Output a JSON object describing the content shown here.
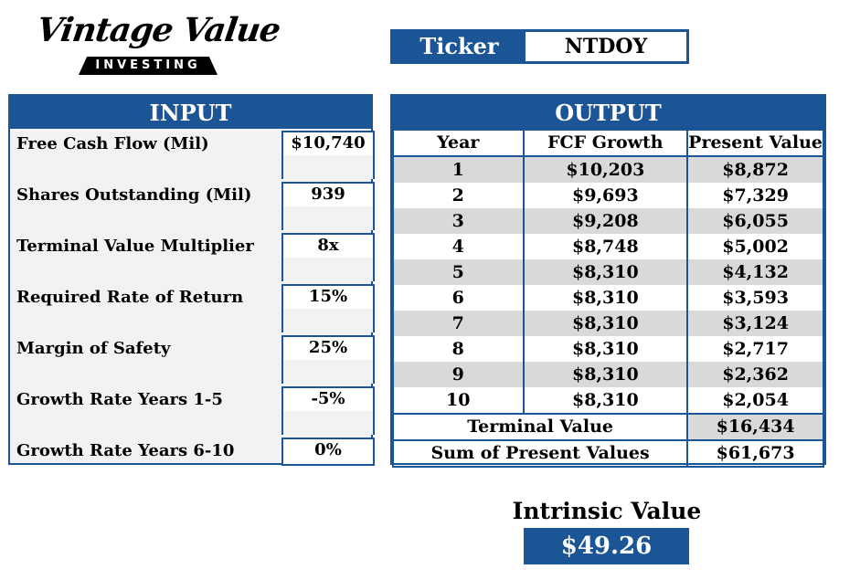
{
  "logo": {
    "script_text": "Vintage Value",
    "sub_text": "INVESTING"
  },
  "ticker": {
    "label": "Ticker",
    "value": "NTDOY"
  },
  "input": {
    "title": "INPUT",
    "fields": [
      {
        "label": "Free Cash Flow (Mil)",
        "value": "$10,740"
      },
      {
        "label": "Shares Outstanding (Mil)",
        "value": "939"
      },
      {
        "label": "Terminal Value Multiplier",
        "value": "8x"
      },
      {
        "label": "Required Rate of Return",
        "value": "15%"
      },
      {
        "label": "Margin of Safety",
        "value": "25%"
      },
      {
        "label": "Growth Rate Years 1-5",
        "value": "-5%"
      },
      {
        "label": "Growth Rate Years 6-10",
        "value": "0%"
      }
    ]
  },
  "output": {
    "title": "OUTPUT",
    "columns": [
      "Year",
      "FCF Growth",
      "Present Value"
    ],
    "rows": [
      {
        "year": "1",
        "fcf": "$10,203",
        "pv": "$8,872"
      },
      {
        "year": "2",
        "fcf": "$9,693",
        "pv": "$7,329"
      },
      {
        "year": "3",
        "fcf": "$9,208",
        "pv": "$6,055"
      },
      {
        "year": "4",
        "fcf": "$8,748",
        "pv": "$5,002"
      },
      {
        "year": "5",
        "fcf": "$8,310",
        "pv": "$4,132"
      },
      {
        "year": "6",
        "fcf": "$8,310",
        "pv": "$3,593"
      },
      {
        "year": "7",
        "fcf": "$8,310",
        "pv": "$3,124"
      },
      {
        "year": "8",
        "fcf": "$8,310",
        "pv": "$2,717"
      },
      {
        "year": "9",
        "fcf": "$8,310",
        "pv": "$2,362"
      },
      {
        "year": "10",
        "fcf": "$8,310",
        "pv": "$2,054"
      }
    ],
    "terminal_label": "Terminal Value",
    "terminal_value": "$16,434",
    "sum_label": "Sum of Present Values",
    "sum_value": "$61,673"
  },
  "intrinsic": {
    "label": "Intrinsic Value",
    "value": "$49.26"
  },
  "colors": {
    "accent": "#1b5596",
    "shade": "#d9d9d9",
    "panel_bg": "#f2f2f2"
  }
}
